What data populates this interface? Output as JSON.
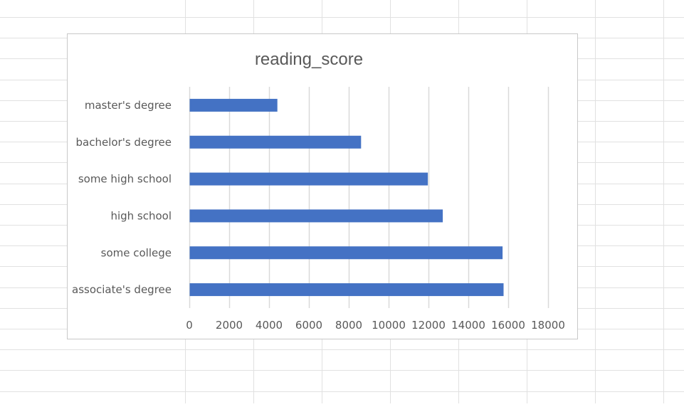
{
  "colors": {
    "bar": "#4472c4",
    "gridline": "#d9d9d9",
    "sheet_grid": "#e1e1e1",
    "text": "#595959",
    "frame_border": "#c8c8c8"
  },
  "chart_data": {
    "type": "bar",
    "orientation": "horizontal",
    "title": "reading_score",
    "categories": [
      "associate's degree",
      "some college",
      "high school",
      "some high school",
      "bachelor's degree",
      "master's degree"
    ],
    "values": [
      15750,
      15700,
      12700,
      11950,
      8600,
      4400
    ],
    "xlim": [
      0,
      18000
    ],
    "x_ticks": [
      0,
      2000,
      4000,
      6000,
      8000,
      10000,
      12000,
      14000,
      16000,
      18000
    ],
    "x_tick_labels": [
      "0",
      "2000",
      "4000",
      "6000",
      "8000",
      "10000",
      "12000",
      "14000",
      "16000",
      "18000"
    ],
    "grid": "vertical",
    "legend": "none",
    "xlabel": "",
    "ylabel": ""
  }
}
